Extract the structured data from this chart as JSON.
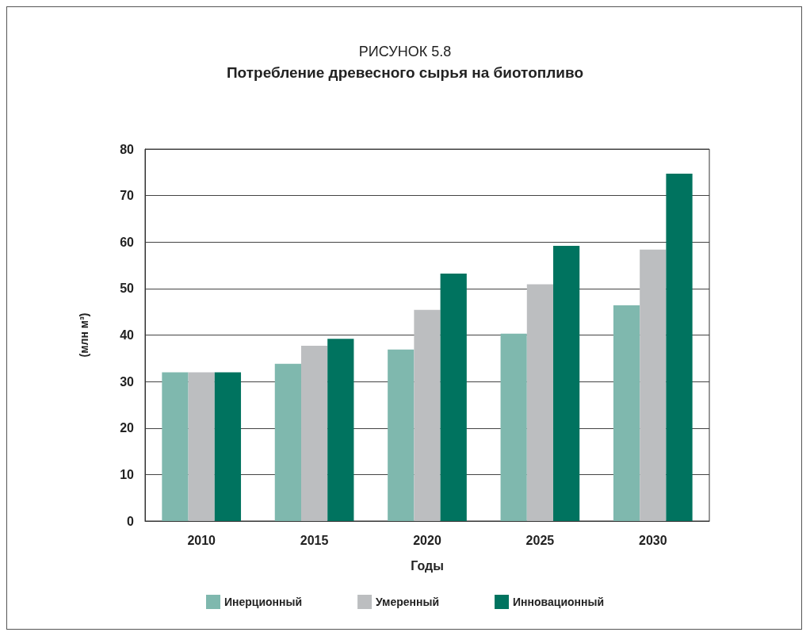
{
  "chart_data": {
    "type": "bar",
    "title": "РИСУНОК 5.8",
    "subtitle": "Потребление древесного сырья на биотопливо",
    "xlabel": "Годы",
    "ylabel": "(млн м³)",
    "categories": [
      "2010",
      "2015",
      "2020",
      "2025",
      "2030"
    ],
    "series": [
      {
        "name": "Инерционный",
        "color": "#7fb8ae",
        "values": [
          32,
          33.8,
          36.9,
          40.3,
          46.4
        ]
      },
      {
        "name": "Умеренный",
        "color": "#bcbec0",
        "values": [
          32,
          37.7,
          45.4,
          50.9,
          58.4
        ]
      },
      {
        "name": "Инновационный",
        "color": "#00735f",
        "values": [
          32,
          39.2,
          53.2,
          59.2,
          74.7
        ]
      }
    ],
    "ylim": [
      0,
      80
    ],
    "yticks": [
      0,
      10,
      20,
      30,
      40,
      50,
      60,
      70,
      80
    ],
    "grid": "y",
    "legend": "bottom"
  }
}
